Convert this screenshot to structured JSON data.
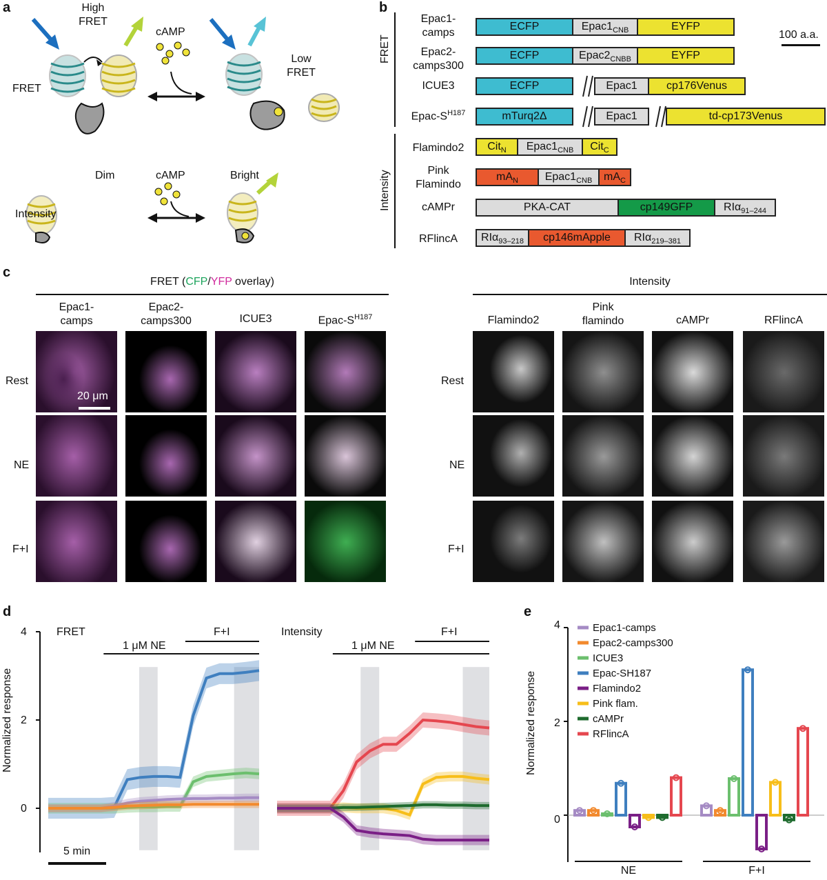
{
  "panel_labels": {
    "a": "a",
    "b": "b",
    "c": "c",
    "d": "d",
    "e": "e"
  },
  "panel_a": {
    "high_fret": "High\nFRET",
    "low_fret": "Low\nFRET",
    "fret": "FRET",
    "camp_top": "cAMP",
    "camp_bottom": "cAMP",
    "dim": "Dim",
    "bright": "Bright",
    "intensity": "Intensity"
  },
  "panel_b": {
    "group_fret": "FRET",
    "group_intensity": "Intensity",
    "scale": "100 a.a.",
    "sensors": [
      {
        "name": "Epac1-\ncamps"
      },
      {
        "name": "Epac2-\ncamps300"
      },
      {
        "name": "ICUE3"
      },
      {
        "name": "Epac-S",
        "sup": "H187"
      },
      {
        "name": "Flamindo2"
      },
      {
        "name": "Pink\nFlamindo"
      },
      {
        "name": "cAMPr"
      },
      {
        "name": "RFlincA"
      }
    ],
    "domains": {
      "ecfp": "ECFP",
      "epac1cnb": "Epac1",
      "cnb": "CNB",
      "eyfp": "EYFP",
      "epac2cnbb": "Epac2",
      "cnbb": "CNBB",
      "epac1": "Epac1",
      "cp176": "cp176Venus",
      "mturq": "mTurq2Δ",
      "tdcp173": "td-cp173Venus",
      "cit": "Cit",
      "n": "N",
      "c": "C",
      "ma": "mA",
      "pkacat": "PKA-CAT",
      "cp149": "cp149GFP",
      "ri": "RIα",
      "ri1": "91–244",
      "ri2": "93–218",
      "ri3": "219–381",
      "cp146": "cp146mApple"
    }
  },
  "panel_c": {
    "fret_header_pre": "FRET (",
    "cfp": "CFP",
    "slash": "/",
    "yfp": "YFP",
    "fret_header_post": " overlay)",
    "intensity_header": "Intensity",
    "fret_cols": [
      "Epac1-\ncamps",
      "Epac2-\ncamps300",
      "ICUE3",
      "Epac-S"
    ],
    "epacs_sup": "H187",
    "int_cols": [
      "Flamindo2",
      "Pink\nflamindo",
      "cAMPr",
      "RFlincA"
    ],
    "rows": [
      "Rest",
      "NE",
      "F+I"
    ],
    "scale": "20 μm"
  },
  "panel_d": {
    "fret_title": "FRET",
    "int_title": "Intensity",
    "ne_label": "1 μM NE",
    "fi_label": "F+I",
    "ylabel": "Normalized response",
    "yticks": [
      "0",
      "2",
      "4"
    ],
    "scalebar": "5 min"
  },
  "panel_e": {
    "ylabel": "Normalized response",
    "yticks": [
      "0",
      "2",
      "4"
    ],
    "groups": [
      "NE",
      "F+I"
    ]
  },
  "colors": {
    "epac1": "#a58bc4",
    "epac2": "#f28a2e",
    "icue3": "#6cbf6e",
    "epacs": "#3f7fbf",
    "flamindo2": "#7a1f86",
    "pink": "#f7be1a",
    "campr": "#1e6b2e",
    "rflinca": "#e5474f"
  },
  "chart_data": [
    {
      "type": "line",
      "title": "FRET",
      "ylabel": "Normalized response",
      "ylim": [
        -1,
        4
      ],
      "x": [
        0,
        1,
        2,
        3,
        4,
        5,
        6,
        7,
        8,
        9,
        10,
        11,
        12,
        13,
        14,
        15,
        16
      ],
      "series": [
        {
          "name": "Epac-SH187",
          "values": [
            0,
            0,
            0,
            0,
            0,
            0.02,
            0.65,
            0.7,
            0.72,
            0.72,
            0.7,
            2.1,
            2.95,
            3.05,
            3.05,
            3.08,
            3.12
          ]
        },
        {
          "name": "ICUE3",
          "values": [
            0,
            0,
            0,
            0,
            0,
            0,
            0.02,
            0.03,
            0.03,
            0.04,
            0.04,
            0.6,
            0.72,
            0.75,
            0.78,
            0.8,
            0.78
          ]
        },
        {
          "name": "Epac1-camps",
          "values": [
            0,
            0,
            0,
            0,
            0,
            0.05,
            0.12,
            0.16,
            0.18,
            0.2,
            0.21,
            0.22,
            0.22,
            0.23,
            0.23,
            0.24,
            0.24
          ]
        },
        {
          "name": "Epac2-camps300",
          "values": [
            0,
            0,
            0,
            0,
            0,
            0.02,
            0.05,
            0.06,
            0.07,
            0.08,
            0.08,
            0.09,
            0.09,
            0.09,
            0.09,
            0.09,
            0.09
          ]
        }
      ]
    },
    {
      "type": "line",
      "title": "Intensity",
      "ylim": [
        -1,
        4
      ],
      "x": [
        0,
        1,
        2,
        3,
        4,
        5,
        6,
        7,
        8,
        9,
        10,
        11,
        12,
        13,
        14,
        15,
        16
      ],
      "series": [
        {
          "name": "RFlincA",
          "values": [
            0,
            0,
            0,
            0,
            0,
            0.4,
            1.05,
            1.3,
            1.45,
            1.45,
            1.7,
            2.0,
            1.98,
            1.95,
            1.9,
            1.85,
            1.82
          ]
        },
        {
          "name": "Pink flam.",
          "values": [
            0,
            0,
            0,
            0,
            0,
            0.02,
            0.0,
            0.0,
            0.0,
            -0.05,
            -0.15,
            0.55,
            0.7,
            0.72,
            0.72,
            0.68,
            0.65
          ]
        },
        {
          "name": "cAMPr",
          "values": [
            0,
            0,
            0,
            0,
            0,
            0.02,
            0.02,
            0.03,
            0.04,
            0.05,
            0.06,
            0.08,
            0.08,
            0.07,
            0.07,
            0.06,
            0.06
          ]
        },
        {
          "name": "Flamindo2",
          "values": [
            0,
            0,
            0,
            0,
            0,
            -0.2,
            -0.5,
            -0.55,
            -0.58,
            -0.6,
            -0.62,
            -0.7,
            -0.72,
            -0.72,
            -0.72,
            -0.72,
            -0.72
          ]
        }
      ]
    },
    {
      "type": "bar",
      "ylabel": "Normalized response",
      "ylim": [
        -1,
        4
      ],
      "categories": [
        "NE",
        "F+I"
      ],
      "series": [
        {
          "name": "Epac1-camps",
          "values": [
            0.1,
            0.2
          ]
        },
        {
          "name": "Epac2-camps300",
          "values": [
            0.1,
            0.1
          ]
        },
        {
          "name": "ICUE3",
          "values": [
            0.03,
            0.78
          ]
        },
        {
          "name": "Epac-SH187",
          "values": [
            0.68,
            3.1
          ]
        },
        {
          "name": "Flamindo2",
          "values": [
            -0.25,
            -0.72
          ]
        },
        {
          "name": "Pink flam.",
          "values": [
            -0.05,
            0.7
          ]
        },
        {
          "name": "cAMPr",
          "values": [
            -0.05,
            -0.1
          ]
        },
        {
          "name": "RFlincA",
          "values": [
            0.8,
            1.85
          ]
        }
      ],
      "legend": "top-left"
    }
  ]
}
